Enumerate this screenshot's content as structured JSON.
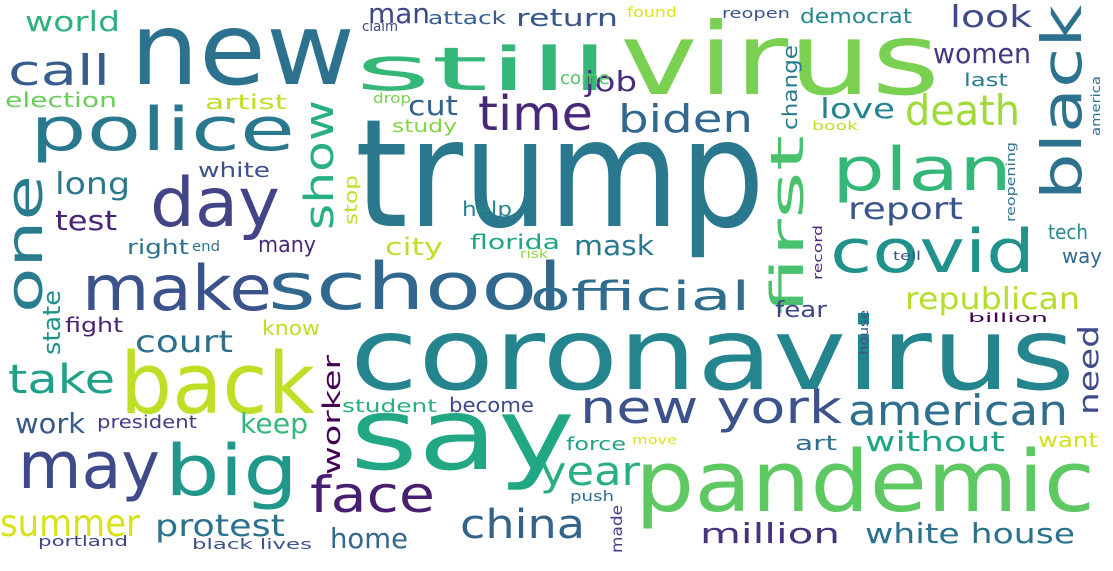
{
  "words": [
    {
      "text": "trump",
      "color": "#2a788e"
    },
    {
      "text": "coronavirus",
      "color": "#25858e"
    },
    {
      "text": "new",
      "color": "#2c728e"
    },
    {
      "text": "virus",
      "color": "#7ad151"
    },
    {
      "text": "say",
      "color": "#22a785"
    },
    {
      "text": "pandemic",
      "color": "#5ec962"
    },
    {
      "text": "still",
      "color": "#35b779"
    },
    {
      "text": "police",
      "color": "#2a788e"
    },
    {
      "text": "school",
      "color": "#31688e"
    },
    {
      "text": "make",
      "color": "#3b528b"
    },
    {
      "text": "back",
      "color": "#bddf26"
    },
    {
      "text": "big",
      "color": "#1f988b"
    },
    {
      "text": "may",
      "color": "#3e4a89"
    },
    {
      "text": "day",
      "color": "#414487"
    },
    {
      "text": "one",
      "color": "#287c8e"
    },
    {
      "text": "black",
      "color": "#2c728e"
    },
    {
      "text": "plan",
      "color": "#35b779"
    },
    {
      "text": "covid",
      "color": "#21918c"
    },
    {
      "text": "new york",
      "color": "#3b528b"
    },
    {
      "text": "official",
      "color": "#2f6c8e"
    },
    {
      "text": "first",
      "color": "#4ac16d"
    },
    {
      "text": "face",
      "color": "#481f70"
    },
    {
      "text": "china",
      "color": "#33638d"
    },
    {
      "text": "american",
      "color": "#2e6e8e"
    },
    {
      "text": "death",
      "color": "#a0da39"
    },
    {
      "text": "time",
      "color": "#482878"
    },
    {
      "text": "biden",
      "color": "#31688e"
    },
    {
      "text": "show",
      "color": "#2ab07f"
    },
    {
      "text": "call",
      "color": "#365d8d"
    },
    {
      "text": "take",
      "color": "#1fa188"
    },
    {
      "text": "year",
      "color": "#29af7f"
    },
    {
      "text": "summer",
      "color": "#d8e219"
    },
    {
      "text": "protest",
      "color": "#2c728e"
    },
    {
      "text": "worker",
      "color": "#440154"
    },
    {
      "text": "white house",
      "color": "#2c728e"
    },
    {
      "text": "million",
      "color": "#46337e"
    },
    {
      "text": "republican",
      "color": "#b5de2b"
    },
    {
      "text": "report",
      "color": "#39568c"
    },
    {
      "text": "women",
      "color": "#453882"
    },
    {
      "text": "look",
      "color": "#3e4a89"
    },
    {
      "text": "job",
      "color": "#472d7b"
    },
    {
      "text": "cut",
      "color": "#33638d"
    },
    {
      "text": "return",
      "color": "#39568c"
    },
    {
      "text": "man",
      "color": "#3f4788"
    },
    {
      "text": "world",
      "color": "#2db27d"
    },
    {
      "text": "long",
      "color": "#2a788e"
    },
    {
      "text": "test",
      "color": "#482475"
    },
    {
      "text": "court",
      "color": "#2d708e"
    },
    {
      "text": "work",
      "color": "#38598c"
    },
    {
      "text": "home",
      "color": "#31688e"
    },
    {
      "text": "keep",
      "color": "#35b779"
    },
    {
      "text": "without",
      "color": "#20a486"
    },
    {
      "text": "mask",
      "color": "#2a788e"
    },
    {
      "text": "city",
      "color": "#bddf26"
    },
    {
      "text": "love",
      "color": "#25858e"
    },
    {
      "text": "need",
      "color": "#3e4a89"
    },
    {
      "text": "state",
      "color": "#21918c"
    },
    {
      "text": "change",
      "color": "#287c8e"
    },
    {
      "text": "fear",
      "color": "#414487"
    },
    {
      "text": "art",
      "color": "#2e6e8e"
    },
    {
      "text": "want",
      "color": "#d2e21b"
    },
    {
      "text": "tech",
      "color": "#238a8d"
    },
    {
      "text": "way",
      "color": "#31688e"
    },
    {
      "text": "attack",
      "color": "#365d8d"
    },
    {
      "text": "democrat",
      "color": "#23898e"
    },
    {
      "text": "election",
      "color": "#6ccd5a"
    },
    {
      "text": "artist",
      "color": "#bddf26"
    },
    {
      "text": "white",
      "color": "#3b528b"
    },
    {
      "text": "right",
      "color": "#2c728e"
    },
    {
      "text": "end",
      "color": "#2c728e"
    },
    {
      "text": "many",
      "color": "#482878"
    },
    {
      "text": "fight",
      "color": "#482475"
    },
    {
      "text": "know",
      "color": "#bddf26"
    },
    {
      "text": "help",
      "color": "#25858e"
    },
    {
      "text": "florida",
      "color": "#20a486"
    },
    {
      "text": "risk",
      "color": "#8fd744"
    },
    {
      "text": "student",
      "color": "#29af7f"
    },
    {
      "text": "become",
      "color": "#3e4a89"
    },
    {
      "text": "president",
      "color": "#433e85"
    },
    {
      "text": "force",
      "color": "#1fa188"
    },
    {
      "text": "move",
      "color": "#dce319"
    },
    {
      "text": "push",
      "color": "#2e6e8e"
    },
    {
      "text": "made",
      "color": "#433e85"
    },
    {
      "text": "portland",
      "color": "#3f4788"
    },
    {
      "text": "black lives",
      "color": "#3b528b"
    },
    {
      "text": "stop",
      "color": "#bddf26"
    },
    {
      "text": "drop",
      "color": "#7ad151"
    },
    {
      "text": "study",
      "color": "#86d549"
    },
    {
      "text": "come",
      "color": "#54c568"
    },
    {
      "text": "claim",
      "color": "#3f4788"
    },
    {
      "text": "found",
      "color": "#dce319"
    },
    {
      "text": "reopen",
      "color": "#3b528b"
    },
    {
      "text": "last",
      "color": "#287c8e"
    },
    {
      "text": "book",
      "color": "#bddf26"
    },
    {
      "text": "america",
      "color": "#2e6e8e"
    },
    {
      "text": "record",
      "color": "#482878"
    },
    {
      "text": "reopening",
      "color": "#2c728e"
    },
    {
      "text": "tell",
      "color": "#3b528b"
    },
    {
      "text": "billion",
      "color": "#440154"
    },
    {
      "text": "house",
      "color": "#3b528b"
    }
  ]
}
